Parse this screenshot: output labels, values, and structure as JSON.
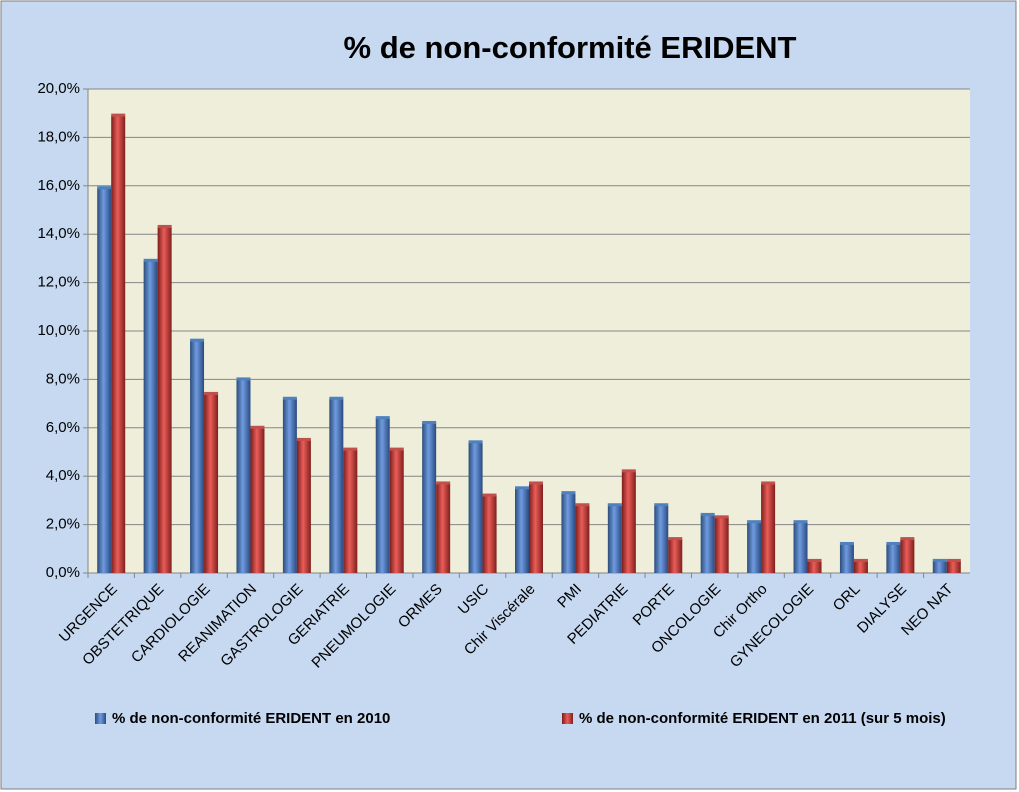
{
  "chart_data": {
    "type": "bar",
    "title": "% de non-conformité ERIDENT",
    "categories": [
      "URGENCE",
      "OBSTETRIQUE",
      "CARDIOLOGIE",
      "REANIMATION",
      "GASTROLOGIE",
      "GERIATRIE",
      "PNEUMOLOGIE",
      "ORMES",
      "USIC",
      "Chir Viscérale",
      "PMI",
      "PEDIATRIE",
      "PORTE",
      "ONCOLOGIE",
      "Chir Ortho",
      "GYNECOLOGIE",
      "ORL",
      "DIALYSE",
      "NEO NAT"
    ],
    "series": [
      {
        "name": "% de non-conformité ERIDENT en 2010",
        "color": "#4f81bd",
        "values": [
          15.9,
          12.9,
          9.6,
          8.0,
          7.2,
          7.2,
          6.4,
          6.2,
          5.4,
          3.5,
          3.3,
          2.8,
          2.8,
          2.4,
          2.1,
          2.1,
          1.2,
          1.2,
          0.5
        ]
      },
      {
        "name": "% de non-conformité ERIDENT en 2011 (sur 5 mois)",
        "color": "#c0504d",
        "values": [
          18.9,
          14.3,
          7.4,
          6.0,
          5.5,
          5.1,
          5.1,
          3.7,
          3.2,
          3.7,
          2.8,
          4.2,
          1.4,
          2.3,
          3.7,
          0.5,
          0.5,
          1.4,
          0.5
        ]
      }
    ],
    "ylim": [
      0,
      20
    ],
    "yticks": [
      {
        "value": 0,
        "label": "0,0%"
      },
      {
        "value": 2,
        "label": "2,0%"
      },
      {
        "value": 4,
        "label": "4,0%"
      },
      {
        "value": 6,
        "label": "6,0%"
      },
      {
        "value": 8,
        "label": "8,0%"
      },
      {
        "value": 10,
        "label": "10,0%"
      },
      {
        "value": 12,
        "label": "12,0%"
      },
      {
        "value": 14,
        "label": "14,0%"
      },
      {
        "value": 16,
        "label": "16,0%"
      },
      {
        "value": 18,
        "label": "18,0%"
      },
      {
        "value": 20,
        "label": "20,0%"
      }
    ],
    "grid": true,
    "legend": "bottom"
  }
}
